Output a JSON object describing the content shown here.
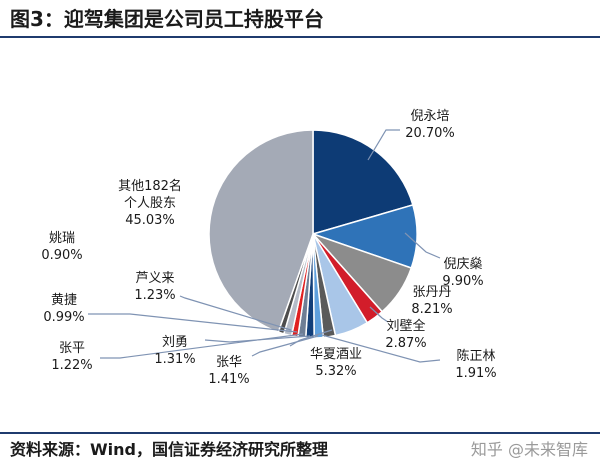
{
  "header": {
    "title": "图3：迎驾集团是公司员工持股平台"
  },
  "footer": {
    "source": "资料来源：Wind，国信证券经济研究所整理",
    "watermark": "知乎 @未来智库"
  },
  "chart_data": {
    "type": "pie",
    "title": "图3：迎驾集团是公司员工持股平台",
    "slices": [
      {
        "name": "倪永培",
        "pct_label": "20.70%",
        "value": 20.7,
        "color": "#0d3b75"
      },
      {
        "name": "倪庆燊",
        "pct_label": "9.90%",
        "value": 9.9,
        "color": "#2f73b8"
      },
      {
        "name": "张丹丹",
        "pct_label": "8.21%",
        "value": 8.21,
        "color": "#8c8c8c"
      },
      {
        "name": "刘壁全",
        "pct_label": "2.87%",
        "value": 2.87,
        "color": "#d21d2a"
      },
      {
        "name": "华夏酒业",
        "pct_label": "5.32%",
        "value": 5.32,
        "color": "#a9c6e8"
      },
      {
        "name": "陈正林",
        "pct_label": "1.91%",
        "value": 1.91,
        "color": "#5a5a5a"
      },
      {
        "name": "张华",
        "pct_label": "1.41%",
        "value": 1.41,
        "color": "#5fa0dd"
      },
      {
        "name": "刘勇",
        "pct_label": "1.31%",
        "value": 1.31,
        "color": "#123f7a"
      },
      {
        "name": "张平",
        "pct_label": "1.22%",
        "value": 1.22,
        "color": "#6e7e95"
      },
      {
        "name": "黄捷",
        "pct_label": "0.99%",
        "value": 0.99,
        "color": "#e02020"
      },
      {
        "name": "芦义来",
        "pct_label": "1.23%",
        "value": 1.23,
        "color": "#b5bcc8"
      },
      {
        "name": "姚瑞",
        "pct_label": "0.90%",
        "value": 0.9,
        "color": "#4d4d4d"
      },
      {
        "name": "其他182名个人股东",
        "pct_label": "45.03%",
        "value": 45.03,
        "color": "#a4aab6"
      }
    ]
  }
}
